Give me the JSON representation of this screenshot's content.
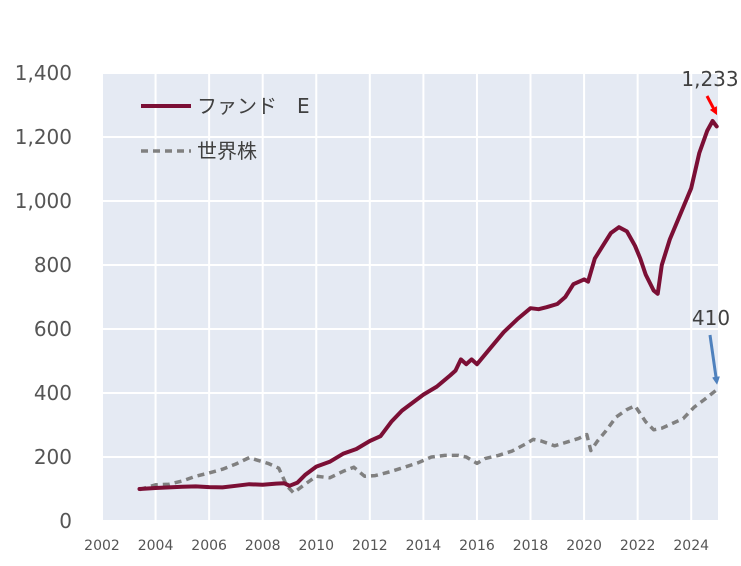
{
  "chart_data": {
    "type": "line",
    "title": "",
    "xlabel": "",
    "ylabel": "",
    "xlim": [
      2002,
      2025
    ],
    "ylim": [
      0,
      1400
    ],
    "yticks": [
      "0",
      "200",
      "400",
      "600",
      "800",
      "1,000",
      "1,200",
      "1,400"
    ],
    "xticks": [
      "2002",
      "2004",
      "2006",
      "2008",
      "2010",
      "2012",
      "2014",
      "2016",
      "2018",
      "2020",
      "2022",
      "2024"
    ],
    "grid": true,
    "background": "#e5eaf3",
    "legend_position": "top-left",
    "series": [
      {
        "name": "ファンド　E",
        "color": "#7b0f35",
        "style": "solid",
        "points": [
          [
            2003.4,
            100
          ],
          [
            2004.0,
            103
          ],
          [
            2004.5,
            105
          ],
          [
            2005.0,
            107
          ],
          [
            2005.5,
            108
          ],
          [
            2006.0,
            106
          ],
          [
            2006.5,
            105
          ],
          [
            2007.0,
            110
          ],
          [
            2007.5,
            115
          ],
          [
            2008.0,
            113
          ],
          [
            2008.5,
            117
          ],
          [
            2008.8,
            118
          ],
          [
            2009.0,
            110
          ],
          [
            2009.3,
            120
          ],
          [
            2009.6,
            145
          ],
          [
            2010.0,
            170
          ],
          [
            2010.5,
            185
          ],
          [
            2011.0,
            210
          ],
          [
            2011.5,
            225
          ],
          [
            2012.0,
            250
          ],
          [
            2012.4,
            265
          ],
          [
            2012.8,
            310
          ],
          [
            2013.2,
            345
          ],
          [
            2013.6,
            370
          ],
          [
            2014.0,
            395
          ],
          [
            2014.5,
            420
          ],
          [
            2015.0,
            455
          ],
          [
            2015.2,
            470
          ],
          [
            2015.4,
            505
          ],
          [
            2015.6,
            490
          ],
          [
            2015.8,
            505
          ],
          [
            2016.0,
            490
          ],
          [
            2016.5,
            540
          ],
          [
            2017.0,
            590
          ],
          [
            2017.5,
            630
          ],
          [
            2018.0,
            665
          ],
          [
            2018.3,
            662
          ],
          [
            2018.6,
            668
          ],
          [
            2019.0,
            678
          ],
          [
            2019.3,
            700
          ],
          [
            2019.6,
            740
          ],
          [
            2020.0,
            755
          ],
          [
            2020.15,
            748
          ],
          [
            2020.4,
            820
          ],
          [
            2020.7,
            860
          ],
          [
            2021.0,
            900
          ],
          [
            2021.3,
            918
          ],
          [
            2021.6,
            905
          ],
          [
            2021.9,
            860
          ],
          [
            2022.1,
            820
          ],
          [
            2022.3,
            770
          ],
          [
            2022.6,
            720
          ],
          [
            2022.75,
            710
          ],
          [
            2022.9,
            800
          ],
          [
            2023.2,
            880
          ],
          [
            2023.6,
            960
          ],
          [
            2024.0,
            1040
          ],
          [
            2024.3,
            1150
          ],
          [
            2024.6,
            1220
          ],
          [
            2024.8,
            1250
          ],
          [
            2024.95,
            1233
          ]
        ]
      },
      {
        "name": "世界株",
        "color": "#808080",
        "style": "dashed",
        "points": [
          [
            2003.4,
            98
          ],
          [
            2004.0,
            113
          ],
          [
            2004.5,
            115
          ],
          [
            2005.0,
            125
          ],
          [
            2005.5,
            140
          ],
          [
            2006.0,
            150
          ],
          [
            2006.5,
            162
          ],
          [
            2007.0,
            178
          ],
          [
            2007.5,
            198
          ],
          [
            2007.8,
            190
          ],
          [
            2008.2,
            180
          ],
          [
            2008.6,
            165
          ],
          [
            2008.9,
            110
          ],
          [
            2009.15,
            88
          ],
          [
            2009.5,
            110
          ],
          [
            2010.0,
            140
          ],
          [
            2010.5,
            135
          ],
          [
            2011.0,
            155
          ],
          [
            2011.4,
            168
          ],
          [
            2011.8,
            140
          ],
          [
            2012.2,
            142
          ],
          [
            2012.8,
            155
          ],
          [
            2013.3,
            168
          ],
          [
            2013.8,
            182
          ],
          [
            2014.3,
            200
          ],
          [
            2014.8,
            205
          ],
          [
            2015.3,
            205
          ],
          [
            2015.6,
            200
          ],
          [
            2016.0,
            180
          ],
          [
            2016.3,
            195
          ],
          [
            2016.8,
            205
          ],
          [
            2017.3,
            218
          ],
          [
            2017.8,
            240
          ],
          [
            2018.1,
            255
          ],
          [
            2018.4,
            250
          ],
          [
            2018.9,
            235
          ],
          [
            2019.3,
            245
          ],
          [
            2019.8,
            258
          ],
          [
            2020.1,
            270
          ],
          [
            2020.25,
            220
          ],
          [
            2020.5,
            250
          ],
          [
            2020.8,
            280
          ],
          [
            2021.2,
            325
          ],
          [
            2021.6,
            348
          ],
          [
            2021.9,
            360
          ],
          [
            2022.3,
            310
          ],
          [
            2022.6,
            285
          ],
          [
            2022.9,
            290
          ],
          [
            2023.3,
            305
          ],
          [
            2023.7,
            320
          ],
          [
            2024.1,
            355
          ],
          [
            2024.5,
            380
          ],
          [
            2024.95,
            410
          ]
        ]
      }
    ],
    "annotations": [
      {
        "text": "1,233",
        "x": 2024.95,
        "y": 1233,
        "arrow_color": "#ff0000"
      },
      {
        "text": "410",
        "x": 2024.95,
        "y": 410,
        "arrow_color": "#4f81bd"
      }
    ]
  }
}
